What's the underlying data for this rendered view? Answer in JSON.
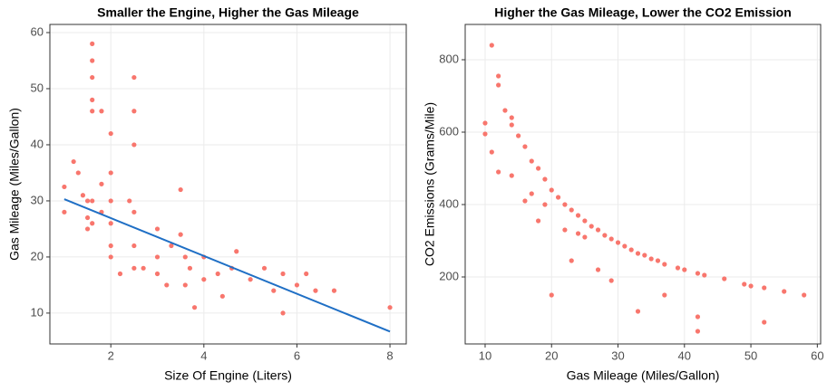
{
  "chart_data": [
    {
      "type": "scatter",
      "title": "Smaller the Engine, Higher the Gas Mileage",
      "x_label": "Size Of Engine (Liters)",
      "y_label": "Gas Mileage (Miles/Gallon)",
      "color": "#f8766d",
      "grid": true,
      "xlim": [
        0.69,
        8.35
      ],
      "ylim": [
        4.5,
        61.45
      ],
      "xticks": [
        2,
        4,
        6,
        8
      ],
      "yticks": [
        10,
        20,
        30,
        40,
        50,
        60
      ],
      "x": [
        1,
        1,
        1.2,
        1.3,
        1.4,
        1.5,
        1.5,
        1.6,
        1.6,
        1.6,
        1.6,
        1.6,
        1.6,
        1.6,
        1.8,
        1.8,
        1.8,
        2,
        2,
        2,
        2,
        2,
        2,
        2.4,
        2.5,
        2.5,
        2.5,
        2.5,
        2.5,
        2.5,
        3,
        3,
        3,
        3.3,
        3.5,
        3.5,
        3.6,
        3.7,
        3.8,
        3.6,
        4,
        4,
        4.3,
        4.7,
        4.6,
        5,
        5.3,
        5.7,
        5.7,
        6,
        6.2,
        6.4,
        6.8,
        8,
        5.5,
        4.4,
        3.2,
        2.7,
        2.2,
        1.5
      ],
      "y": [
        32.5,
        28,
        37,
        35,
        31,
        30,
        25,
        58,
        55,
        52,
        48,
        46,
        30,
        26,
        46,
        33,
        28,
        42,
        35,
        30,
        26,
        22,
        20,
        30,
        52,
        46,
        40,
        28,
        22,
        18,
        25,
        20,
        17,
        22,
        32,
        24,
        20,
        18,
        11,
        15,
        20,
        16,
        17,
        21,
        18,
        16,
        18,
        17,
        10,
        15,
        17,
        14,
        14,
        11,
        14,
        13,
        15,
        18,
        17,
        27
      ],
      "trend_line": {
        "color": "#1f6fc5",
        "x": [
          1,
          8
        ],
        "y": [
          30.3,
          6.7
        ]
      }
    },
    {
      "type": "scatter",
      "title": "Higher the Gas Mileage, Lower the CO2 Emission",
      "x_label": "Gas Mileage (Miles/Gallon)",
      "y_label": "CO2 Emissions (Grams/Mile)",
      "color": "#f8766d",
      "grid": true,
      "xlim": [
        7,
        60.5
      ],
      "ylim": [
        15,
        897.5
      ],
      "xticks": [
        10,
        20,
        30,
        40,
        50,
        60
      ],
      "yticks": [
        200,
        400,
        600,
        800
      ],
      "x": [
        10,
        10,
        11,
        11,
        12,
        12,
        12,
        13,
        14,
        14,
        15,
        16,
        17,
        18,
        19,
        20,
        20,
        21,
        22,
        23,
        24,
        25,
        25,
        26,
        27,
        27,
        28,
        29,
        30,
        31,
        32,
        33,
        33,
        34,
        35,
        36,
        37,
        37,
        39,
        40,
        42,
        42,
        42,
        43,
        46,
        49,
        50,
        52,
        52,
        55,
        58,
        14,
        17,
        19,
        23,
        24,
        29,
        16,
        22,
        18
      ],
      "y": [
        625,
        595,
        840,
        545,
        755,
        730,
        490,
        660,
        640,
        620,
        590,
        560,
        520,
        500,
        470,
        440,
        150,
        420,
        400,
        385,
        370,
        355,
        310,
        340,
        330,
        220,
        315,
        305,
        295,
        285,
        275,
        265,
        105,
        260,
        250,
        245,
        235,
        150,
        225,
        220,
        210,
        50,
        90,
        205,
        195,
        180,
        175,
        170,
        75,
        160,
        150,
        480,
        430,
        400,
        245,
        320,
        190,
        410,
        330,
        355
      ]
    }
  ]
}
